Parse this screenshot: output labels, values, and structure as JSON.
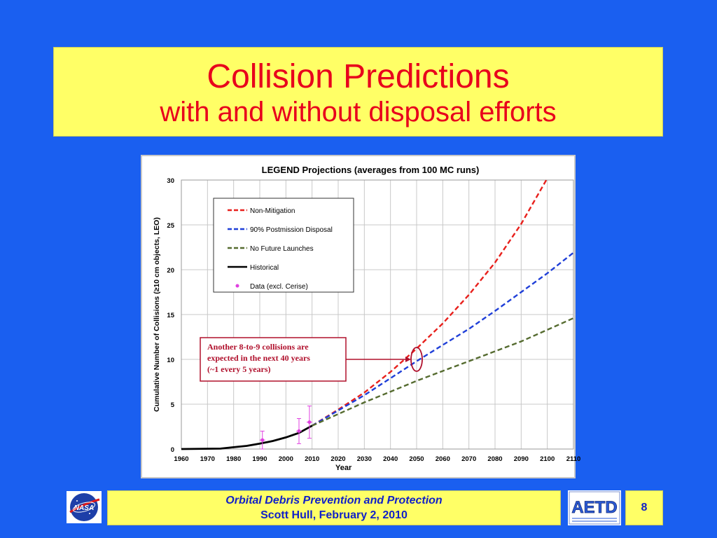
{
  "slide": {
    "title": "Collision Predictions",
    "subtitle": "with and without disposal efforts",
    "footer_line1": "Orbital Debris Prevention and Protection",
    "footer_line2": "Scott Hull, February 2, 2010",
    "page_number": "8",
    "logo_left": "NASA",
    "logo_right": "AETD"
  },
  "colors": {
    "background": "#1a5ff0",
    "title_red": "#e8001c",
    "banner_yellow": "#ffff66",
    "non_mitigation": "#e8201c",
    "postmission": "#1f3fd8",
    "no_future": "#556b2f",
    "historical": "#000000",
    "data_points": "#e040e0",
    "annotation": "#b0102c"
  },
  "chart_data": {
    "type": "line",
    "title": "LEGEND Projections (averages from 100 MC runs)",
    "xlabel": "Year",
    "ylabel": "Cumulative Number of Collisions (≥10 cm objects, LEO)",
    "xlim": [
      1960,
      2110
    ],
    "ylim": [
      0,
      30
    ],
    "x_ticks": [
      1960,
      1970,
      1980,
      1990,
      2000,
      2010,
      2020,
      2030,
      2040,
      2050,
      2060,
      2070,
      2080,
      2090,
      2100,
      2110
    ],
    "y_ticks": [
      0,
      5,
      10,
      15,
      20,
      25,
      30
    ],
    "grid": true,
    "legend_position": "top-left",
    "series": [
      {
        "name": "Non-Mitigation",
        "style": "dashed",
        "x": [
          2010,
          2020,
          2030,
          2040,
          2050,
          2060,
          2070,
          2080,
          2090,
          2100
        ],
        "y": [
          2.6,
          4.4,
          6.3,
          8.6,
          11.2,
          14.0,
          17.2,
          20.8,
          25.1,
          30.2
        ]
      },
      {
        "name": "90% Postmission Disposal",
        "style": "dashed",
        "x": [
          2010,
          2020,
          2030,
          2040,
          2050,
          2060,
          2070,
          2080,
          2090,
          2100,
          2110
        ],
        "y": [
          2.6,
          4.3,
          6.0,
          7.9,
          9.8,
          11.6,
          13.4,
          15.4,
          17.5,
          19.6,
          21.9
        ]
      },
      {
        "name": "No Future Launches",
        "style": "dashed",
        "x": [
          2010,
          2020,
          2030,
          2040,
          2050,
          2060,
          2070,
          2080,
          2090,
          2100,
          2110
        ],
        "y": [
          2.6,
          3.9,
          5.2,
          6.4,
          7.6,
          8.7,
          9.8,
          10.9,
          12.0,
          13.3,
          14.6
        ]
      },
      {
        "name": "Historical",
        "style": "solid",
        "x": [
          1960,
          1975,
          1980,
          1985,
          1990,
          1995,
          2000,
          2005,
          2010
        ],
        "y": [
          0,
          0.05,
          0.2,
          0.35,
          0.6,
          0.9,
          1.3,
          1.8,
          2.6
        ]
      },
      {
        "name": "Data (excl. Cerise)",
        "style": "points",
        "x": [
          1991,
          2005,
          2009
        ],
        "y": [
          1.0,
          2.0,
          3.0
        ],
        "err": [
          1.0,
          1.4,
          1.8
        ]
      }
    ],
    "annotation": {
      "lines": [
        "Another 8-to-9 collisions are",
        "expected in the next 40 years",
        "(~1 every 5 years)"
      ],
      "target_x": 2050,
      "target_y": 10
    }
  }
}
